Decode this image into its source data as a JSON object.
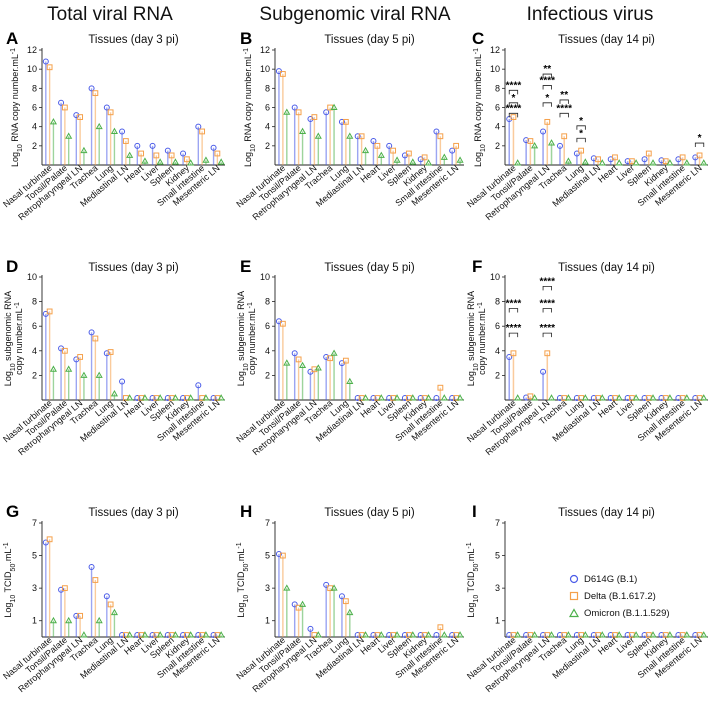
{
  "figure": {
    "columns": [
      {
        "title": "Total viral RNA"
      },
      {
        "title": "Subgenomic viral RNA"
      },
      {
        "title": "Infectious virus"
      }
    ],
    "legend": [
      {
        "label": "D614G (B.1)"
      },
      {
        "label": "Delta (B.1.617.2)"
      },
      {
        "label": "Omicron (B.1.1.529)"
      }
    ]
  },
  "colors": {
    "d614g": "#4a5be8",
    "delta": "#f5a04a",
    "omicron": "#4cb04a"
  },
  "chart_data": [
    {
      "id": "A",
      "type": "bar",
      "panel": "A",
      "title": "Tissues (day 3 pi)",
      "ylabel_parts": [
        "Log",
        "10",
        " RNA copy number.mL",
        "-1"
      ],
      "ylim": [
        0,
        12
      ],
      "yticks": [
        2,
        4,
        6,
        8,
        10,
        12
      ],
      "categories": [
        "Nasal turbinate",
        "Tonsil/Palate",
        "Retropharyngeal LN",
        "Trachea",
        "Lung",
        "Mediastinal LN",
        "Heart",
        "Liver",
        "Spleen",
        "Kidney",
        "Small intestine",
        "Mesenteric LN"
      ],
      "series": [
        {
          "name": "D614G (B.1)",
          "values": [
            10.8,
            6.5,
            5.2,
            8.0,
            6.0,
            3.5,
            2.0,
            2.0,
            1.5,
            1.2,
            4.0,
            1.8
          ]
        },
        {
          "name": "Delta (B.1.617.2)",
          "values": [
            10.2,
            6.0,
            5.0,
            7.5,
            5.5,
            2.5,
            1.2,
            1.0,
            1.0,
            0.6,
            3.5,
            1.2
          ]
        },
        {
          "name": "Omicron (B.1.1.529)",
          "values": [
            4.5,
            3.0,
            1.5,
            4.0,
            3.5,
            1.0,
            0.4,
            0.3,
            0.3,
            0.2,
            0.5,
            0.3
          ]
        }
      ],
      "annotations": []
    },
    {
      "id": "B",
      "type": "bar",
      "panel": "B",
      "title": "Tissues (day 5 pi)",
      "ylabel_parts": [
        "Log",
        "10",
        " RNA copy number.mL",
        "-1"
      ],
      "ylim": [
        0,
        12
      ],
      "yticks": [
        2,
        4,
        6,
        8,
        10,
        12
      ],
      "categories": [
        "Nasal turbinate",
        "Tonsil/Palate",
        "Retropharyngeal LN",
        "Trachea",
        "Lung",
        "Mediastinal LN",
        "Heart",
        "Liver",
        "Spleen",
        "Kidney",
        "Small intestine",
        "Mesenteric LN"
      ],
      "series": [
        {
          "name": "D614G (B.1)",
          "values": [
            9.8,
            6.0,
            4.8,
            5.5,
            4.5,
            3.0,
            2.5,
            2.0,
            1.0,
            0.6,
            3.5,
            1.5
          ]
        },
        {
          "name": "Delta (B.1.617.2)",
          "values": [
            9.5,
            5.5,
            5.0,
            6.0,
            4.5,
            3.0,
            2.0,
            1.5,
            1.2,
            0.8,
            3.0,
            2.0
          ]
        },
        {
          "name": "Omicron (B.1.1.529)",
          "values": [
            5.5,
            3.5,
            3.0,
            6.0,
            3.0,
            1.5,
            1.0,
            0.5,
            0.3,
            0.2,
            0.8,
            0.5
          ]
        }
      ],
      "annotations": []
    },
    {
      "id": "C",
      "type": "bar",
      "panel": "C",
      "title": "Tissues (day 14 pi)",
      "ylabel_parts": [
        "Log",
        "10",
        " RNA copy number.mL",
        "-1"
      ],
      "ylim": [
        0,
        12
      ],
      "yticks": [
        2,
        4,
        6,
        8,
        10,
        12
      ],
      "categories": [
        "Nasal turbinate",
        "Tonsil/Palate",
        "Retropharyngeal LN",
        "Trachea",
        "Lung",
        "Mediastinal LN",
        "Heart",
        "Liver",
        "Spleen",
        "Kidney",
        "Small intestine",
        "Mesenteric LN"
      ],
      "series": [
        {
          "name": "D614G (B.1)",
          "values": [
            4.8,
            2.6,
            3.5,
            2.0,
            1.2,
            0.7,
            0.6,
            0.4,
            0.6,
            0.5,
            0.6,
            0.8
          ]
        },
        {
          "name": "Delta (B.1.617.2)",
          "values": [
            5.0,
            2.5,
            4.5,
            3.0,
            1.5,
            0.6,
            0.8,
            0.4,
            1.2,
            0.4,
            0.8,
            1.0
          ]
        },
        {
          "name": "Omicron (B.1.1.529)",
          "values": [
            0.2,
            2.0,
            2.3,
            0.4,
            0.3,
            0.1,
            0.1,
            0.1,
            0.2,
            0.1,
            0.2,
            0.2
          ]
        }
      ],
      "annotations": [
        {
          "text": "****",
          "cat": 0,
          "y": 8.0
        },
        {
          "text": "*",
          "cat": 0,
          "y": 6.7
        },
        {
          "text": "****",
          "cat": 0,
          "y": 5.6
        },
        {
          "text": "**",
          "cat": 2,
          "y": 9.7
        },
        {
          "text": "****",
          "cat": 2,
          "y": 8.5
        },
        {
          "text": "*",
          "cat": 2,
          "y": 6.7
        },
        {
          "text": "**",
          "cat": 3,
          "y": 7.0
        },
        {
          "text": "****",
          "cat": 3,
          "y": 5.6
        },
        {
          "text": "*",
          "cat": 4,
          "y": 4.3
        },
        {
          "text": "*",
          "cat": 4,
          "y": 3.0
        },
        {
          "text": "*",
          "cat": 11,
          "y": 2.5
        }
      ]
    },
    {
      "id": "D",
      "type": "bar",
      "panel": "D",
      "title": "Tissues (day 3 pi)",
      "ylabel_parts": [
        "Log",
        "10",
        " subgenomic RNA",
        "copy number.mL",
        "-1"
      ],
      "ylim": [
        0,
        10
      ],
      "yticks": [
        2,
        4,
        6,
        8,
        10
      ],
      "categories": [
        "Nasal turbinate",
        "Tonsil/Palate",
        "Retropharyngeal LN",
        "Trachea",
        "Lung",
        "Mediastinal LN",
        "Heart",
        "Liver",
        "Spleen",
        "Kidney",
        "Small intestine",
        "Mesenteric LN"
      ],
      "series": [
        {
          "name": "D614G (B.1)",
          "values": [
            7.0,
            4.2,
            3.3,
            5.5,
            3.8,
            1.5,
            0.1,
            0.1,
            0.1,
            0.1,
            1.2,
            0.1
          ]
        },
        {
          "name": "Delta (B.1.617.2)",
          "values": [
            7.2,
            4.0,
            3.5,
            5.0,
            3.9,
            0.1,
            0.1,
            0.1,
            0.1,
            0.1,
            0.1,
            0.1
          ]
        },
        {
          "name": "Omicron (B.1.1.529)",
          "values": [
            2.5,
            2.5,
            2.0,
            2.0,
            0.5,
            0.1,
            0.1,
            0.1,
            0.1,
            0.1,
            0.1,
            0.1
          ]
        }
      ],
      "annotations": []
    },
    {
      "id": "E",
      "type": "bar",
      "panel": "E",
      "title": "Tissues (day 5 pi)",
      "ylabel_parts": [
        "Log",
        "10",
        " subgenomic RNA",
        "copy number.mL",
        "-1"
      ],
      "ylim": [
        0,
        10
      ],
      "yticks": [
        2,
        4,
        6,
        8,
        10
      ],
      "categories": [
        "Nasal turbinate",
        "Tonsil/Palate",
        "Retropharyngeal LN",
        "Trachea",
        "Lung",
        "Mediastinal LN",
        "Heart",
        "Liver",
        "Spleen",
        "Kidney",
        "Small intestine",
        "Mesenteric LN"
      ],
      "series": [
        {
          "name": "D614G (B.1)",
          "values": [
            6.4,
            3.8,
            2.3,
            3.5,
            3.0,
            0.1,
            0.1,
            0.1,
            0.1,
            0.1,
            0.1,
            0.1
          ]
        },
        {
          "name": "Delta (B.1.617.2)",
          "values": [
            6.2,
            3.3,
            2.5,
            3.4,
            3.2,
            0.1,
            0.1,
            0.1,
            0.1,
            0.1,
            1.0,
            0.1
          ]
        },
        {
          "name": "Omicron (B.1.1.529)",
          "values": [
            3.0,
            2.8,
            2.6,
            3.8,
            1.5,
            0.1,
            0.1,
            0.1,
            0.1,
            0.1,
            0.1,
            0.1
          ]
        }
      ],
      "annotations": []
    },
    {
      "id": "F",
      "type": "bar",
      "panel": "F",
      "title": "Tissues (day 14 pi)",
      "ylabel_parts": [
        "Log",
        "10",
        " subgenomic RNA",
        "copy number.mL",
        "-1"
      ],
      "ylim": [
        0,
        10
      ],
      "yticks": [
        2,
        4,
        6,
        8,
        10
      ],
      "categories": [
        "Nasal turbinate",
        "Tonsil/Palate",
        "Retropharyngeal LN",
        "Trachea",
        "Lung",
        "Mediastinal LN",
        "Heart",
        "Liver",
        "Spleen",
        "Kidney",
        "Small intestine",
        "Mesenteric LN"
      ],
      "series": [
        {
          "name": "D614G (B.1)",
          "values": [
            3.5,
            0.2,
            2.3,
            0.1,
            0.1,
            0.1,
            0.1,
            0.1,
            0.1,
            0.1,
            0.1,
            0.1
          ]
        },
        {
          "name": "Delta (B.1.617.2)",
          "values": [
            3.8,
            0.3,
            3.8,
            0.1,
            0.1,
            0.1,
            0.1,
            0.1,
            0.1,
            0.1,
            0.1,
            0.1
          ]
        },
        {
          "name": "Omicron (B.1.1.529)",
          "values": [
            0.1,
            0.1,
            0.1,
            0.1,
            0.1,
            0.1,
            0.1,
            0.1,
            0.1,
            0.1,
            0.1,
            0.1
          ]
        }
      ],
      "annotations": [
        {
          "text": "****",
          "cat": 0,
          "y": 7.6
        },
        {
          "text": "****",
          "cat": 0,
          "y": 5.6
        },
        {
          "text": "****",
          "cat": 2,
          "y": 9.4
        },
        {
          "text": "****",
          "cat": 2,
          "y": 7.6
        },
        {
          "text": "****",
          "cat": 2,
          "y": 5.6
        }
      ]
    },
    {
      "id": "G",
      "type": "bar",
      "panel": "G",
      "title": "Tissues (day 3 pi)",
      "ylabel_parts": [
        "Log",
        "10",
        " TCID",
        "50",
        ".mL",
        "-1"
      ],
      "ylim": [
        0,
        7
      ],
      "yticks": [
        1,
        3,
        5,
        7
      ],
      "categories": [
        "Nasal turbinate",
        "Tonsil/Palate",
        "Retropharyngeal LN",
        "Trachea",
        "Lung",
        "Mediastinal LN",
        "Heart",
        "Liver",
        "Spleen",
        "Kidney",
        "Small intestine",
        "Mesenteric LN"
      ],
      "series": [
        {
          "name": "D614G (B.1)",
          "values": [
            5.8,
            2.9,
            1.3,
            4.3,
            2.5,
            0.1,
            0.1,
            0.1,
            0.1,
            0.1,
            0.1,
            0.1
          ]
        },
        {
          "name": "Delta (B.1.617.2)",
          "values": [
            6.0,
            3.0,
            1.3,
            3.5,
            2.0,
            0.1,
            0.1,
            0.1,
            0.1,
            0.1,
            0.1,
            0.1
          ]
        },
        {
          "name": "Omicron (B.1.1.529)",
          "values": [
            1.0,
            1.0,
            0.1,
            1.0,
            1.5,
            0.1,
            0.1,
            0.1,
            0.1,
            0.1,
            0.1,
            0.1
          ]
        }
      ],
      "annotations": []
    },
    {
      "id": "H",
      "type": "bar",
      "panel": "H",
      "title": "Tissues (day 5 pi)",
      "ylabel_parts": [
        "Log",
        "10",
        " TCID",
        "50",
        ".mL",
        "-1"
      ],
      "ylim": [
        0,
        7
      ],
      "yticks": [
        1,
        3,
        5,
        7
      ],
      "categories": [
        "Nasal turbinate",
        "Tonsil/Palate",
        "Retropharyngeal LN",
        "Trachea",
        "Lung",
        "Mediastinal LN",
        "Heart",
        "Liver",
        "Spleen",
        "Kidney",
        "Small intestine",
        "Mesenteric LN"
      ],
      "series": [
        {
          "name": "D614G (B.1)",
          "values": [
            5.1,
            2.0,
            0.5,
            3.2,
            2.5,
            0.1,
            0.1,
            0.1,
            0.1,
            0.1,
            0.1,
            0.1
          ]
        },
        {
          "name": "Delta (B.1.617.2)",
          "values": [
            5.0,
            1.8,
            0.1,
            3.0,
            2.2,
            0.1,
            0.1,
            0.1,
            0.1,
            0.1,
            0.6,
            0.1
          ]
        },
        {
          "name": "Omicron (B.1.1.529)",
          "values": [
            3.0,
            2.0,
            0.1,
            3.0,
            1.5,
            0.1,
            0.1,
            0.1,
            0.1,
            0.1,
            0.1,
            0.1
          ]
        }
      ],
      "annotations": []
    },
    {
      "id": "I",
      "type": "bar",
      "panel": "I",
      "title": "Tissues (day 14 pi)",
      "ylabel_parts": [
        "Log",
        "10",
        " TCID",
        "50",
        ".mL",
        "-1"
      ],
      "ylim": [
        0,
        7
      ],
      "yticks": [
        1,
        3,
        5,
        7
      ],
      "categories": [
        "Nasal turbinate",
        "Tonsil/Palate",
        "Retropharyngeal LN",
        "Trachea",
        "Lung",
        "Mediastinal LN",
        "Heart",
        "Liver",
        "Spleen",
        "Kidney",
        "Small intestine",
        "Mesenteric LN"
      ],
      "series": [
        {
          "name": "D614G (B.1)",
          "values": [
            0.1,
            0.1,
            0.1,
            0.1,
            0.1,
            0.1,
            0.1,
            0.1,
            0.1,
            0.1,
            0.1,
            0.1
          ]
        },
        {
          "name": "Delta (B.1.617.2)",
          "values": [
            0.1,
            0.1,
            0.1,
            0.1,
            0.1,
            0.1,
            0.1,
            0.1,
            0.1,
            0.1,
            0.1,
            0.1
          ]
        },
        {
          "name": "Omicron (B.1.1.529)",
          "values": [
            0.1,
            0.1,
            0.1,
            0.1,
            0.1,
            0.1,
            0.1,
            0.1,
            0.1,
            0.1,
            0.1,
            0.1
          ]
        }
      ],
      "annotations": []
    }
  ]
}
